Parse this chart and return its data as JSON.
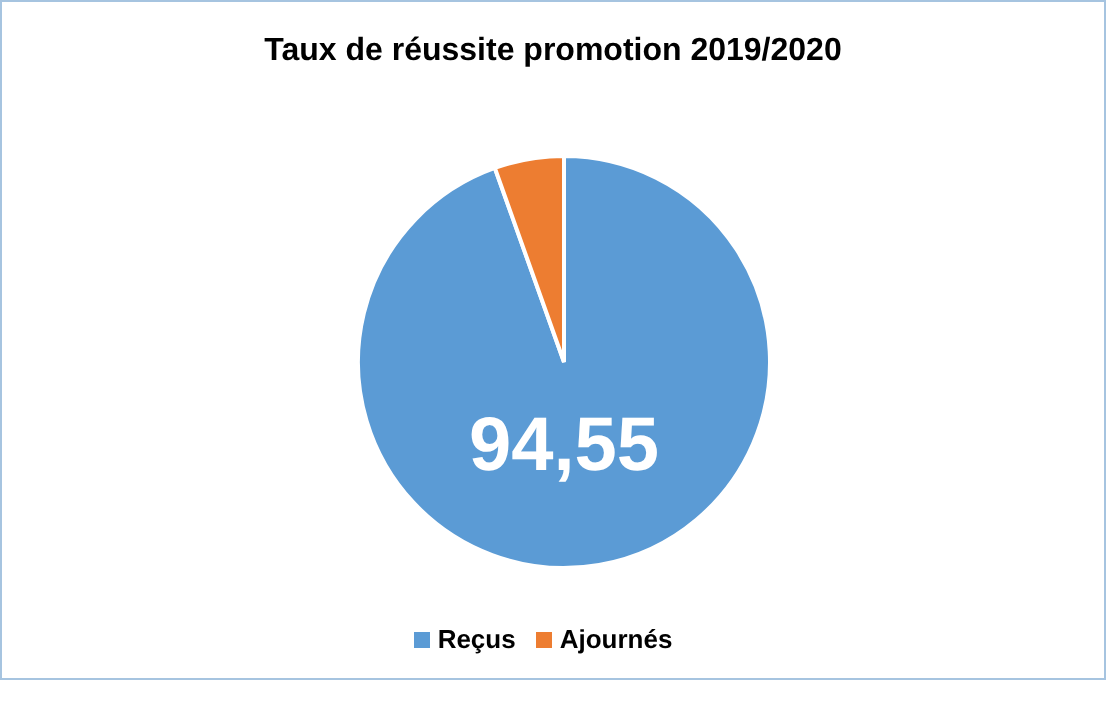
{
  "chart_data": {
    "type": "pie",
    "title": "Taux de réussite promotion 2019/2020",
    "categories": [
      "Reçus",
      "Ajournés"
    ],
    "values": [
      94.55,
      5.45
    ],
    "colors": [
      "#5b9bd5",
      "#ed7d31"
    ],
    "value_labels": [
      "94,55",
      null
    ],
    "legend": "bottom"
  }
}
